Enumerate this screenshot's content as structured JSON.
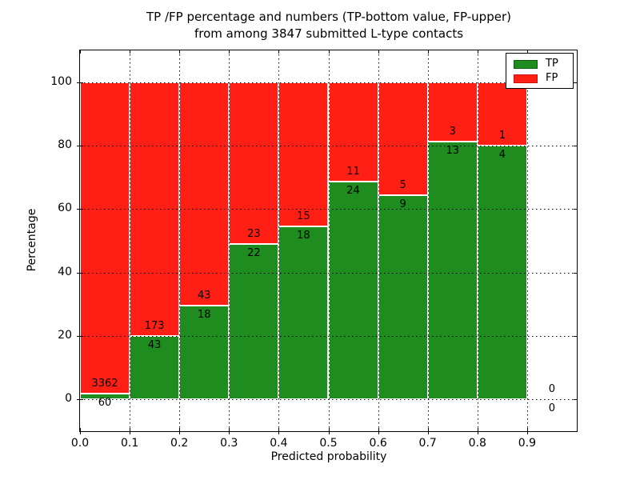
{
  "figure": {
    "title_line1": "TP /FP percentage and numbers (TP-bottom value, FP-upper)",
    "title_line2": "from among 3847 submitted L-type contacts"
  },
  "colors": {
    "tp_green": "#1e8c1e",
    "fp_red": "#ff1f14",
    "grid": "#000000",
    "background": "#ffffff",
    "tp_swatch_border": "#0e5c0e",
    "fp_swatch_border": "#cc120a"
  },
  "chart_data": {
    "type": "bar",
    "stacked": true,
    "title": "TP /FP percentage and numbers (TP-bottom value, FP-upper)\nfrom among 3847 submitted L-type contacts",
    "total_submitted": 3847,
    "xlabel": "Predicted probability",
    "ylabel": "Percentage",
    "xlim": [
      0.0,
      1.0
    ],
    "ylim": [
      -10,
      110
    ],
    "x_tick_labels": [
      "0.0",
      "0.1",
      "0.2",
      "0.3",
      "0.4",
      "0.5",
      "0.6",
      "0.7",
      "0.8",
      "0.9"
    ],
    "y_tick_values": [
      0,
      20,
      40,
      60,
      80,
      100
    ],
    "grid": true,
    "legend": {
      "position": "upper right",
      "entries": [
        {
          "label": "TP",
          "color": "#1e8c1e"
        },
        {
          "label": "FP",
          "color": "#ff1f14"
        }
      ]
    },
    "bins": [
      {
        "range": [
          0.0,
          0.1
        ],
        "tp": 60,
        "fp": 3362
      },
      {
        "range": [
          0.1,
          0.2
        ],
        "tp": 43,
        "fp": 173
      },
      {
        "range": [
          0.2,
          0.3
        ],
        "tp": 18,
        "fp": 43
      },
      {
        "range": [
          0.3,
          0.4
        ],
        "tp": 22,
        "fp": 23
      },
      {
        "range": [
          0.4,
          0.5
        ],
        "tp": 18,
        "fp": 15
      },
      {
        "range": [
          0.5,
          0.6
        ],
        "tp": 24,
        "fp": 11
      },
      {
        "range": [
          0.6,
          0.7
        ],
        "tp": 9,
        "fp": 5
      },
      {
        "range": [
          0.7,
          0.8
        ],
        "tp": 13,
        "fp": 3
      },
      {
        "range": [
          0.8,
          0.9
        ],
        "tp": 4,
        "fp": 1
      },
      {
        "range": [
          0.9,
          1.0
        ],
        "tp": 0,
        "fp": 0
      }
    ]
  }
}
